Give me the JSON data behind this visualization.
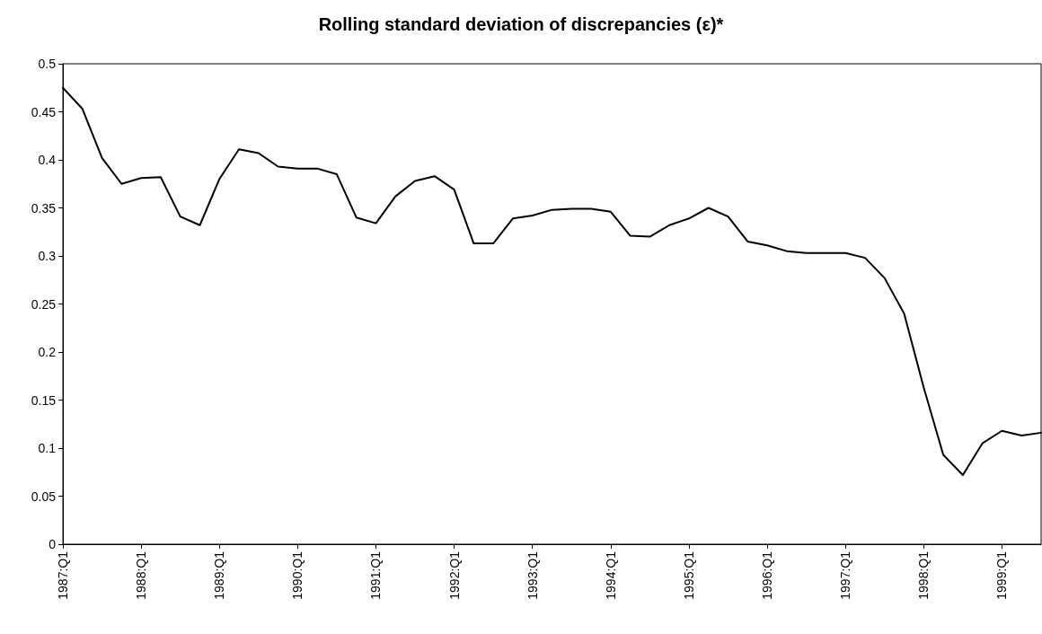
{
  "chart_data": {
    "type": "line",
    "title": "Rolling standard deviation of discrepancies (ε)*",
    "categories": [
      "1987:Q1",
      null,
      null,
      null,
      "1988:Q1",
      null,
      null,
      null,
      "1989:Q1",
      null,
      null,
      null,
      "1990:Q1",
      null,
      null,
      null,
      "1991:Q1",
      null,
      null,
      null,
      "1992:Q1",
      null,
      null,
      null,
      "1993:Q1",
      null,
      null,
      null,
      "1994:Q1",
      null,
      null,
      null,
      "1995:Q1",
      null,
      null,
      null,
      "1996:Q1",
      null,
      null,
      null,
      "1997:Q1",
      null,
      null,
      null,
      "1998:Q1",
      null,
      null,
      null,
      "1999:Q1",
      null,
      null
    ],
    "series": [
      {
        "color": "#000000",
        "values": [
          0.475,
          0.453,
          0.402,
          0.375,
          0.381,
          0.382,
          0.341,
          0.332,
          0.38,
          0.411,
          0.407,
          0.393,
          0.391,
          0.391,
          0.385,
          0.34,
          0.334,
          0.362,
          0.378,
          0.383,
          0.369,
          0.313,
          0.313,
          0.339,
          0.342,
          0.348,
          0.349,
          0.349,
          0.346,
          0.321,
          0.32,
          0.332,
          0.339,
          0.35,
          0.341,
          0.315,
          0.311,
          0.305,
          0.303,
          0.303,
          0.303,
          0.298,
          0.277,
          0.24,
          0.163,
          0.093,
          0.072,
          0.105,
          0.118,
          0.113,
          0.116
        ]
      }
    ],
    "ylim": [
      0,
      0.5
    ],
    "yticks": [
      0,
      0.05,
      0.1,
      0.15,
      0.2,
      0.25,
      0.3,
      0.35,
      0.4,
      0.45,
      0.5
    ],
    "grid": false,
    "marker": "none",
    "line_style": "solid"
  }
}
